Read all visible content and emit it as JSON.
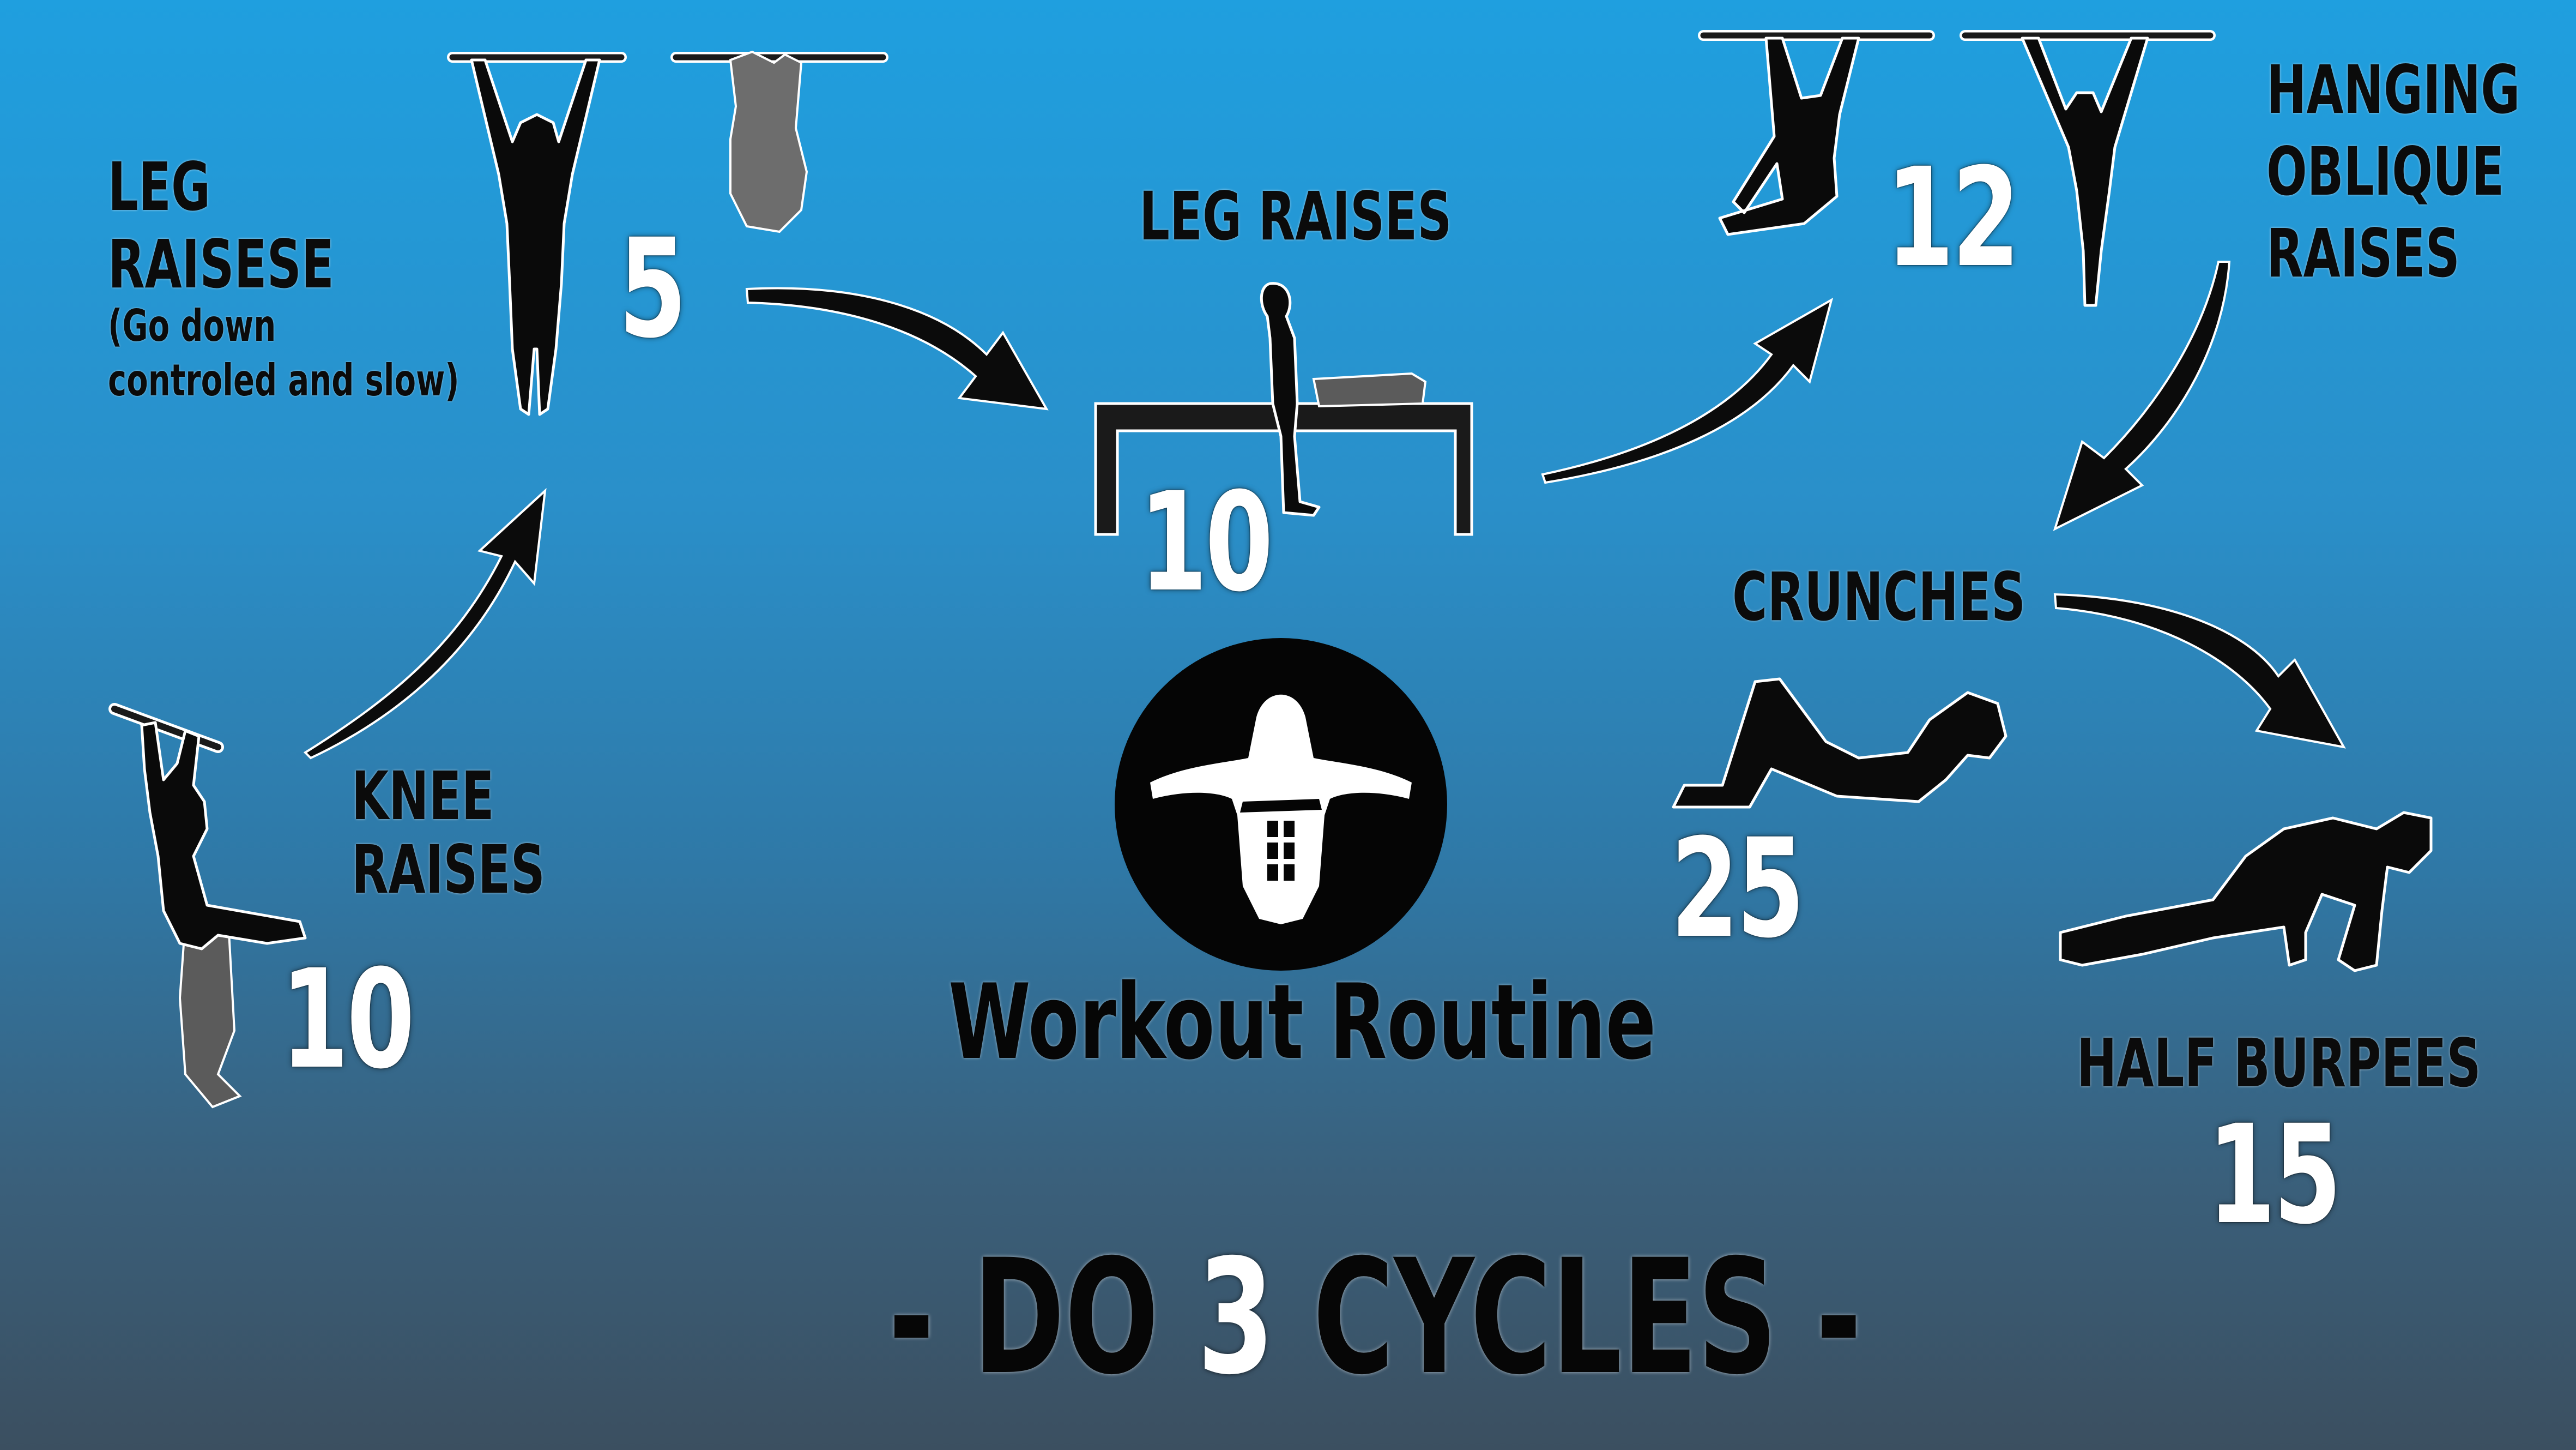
{
  "exercises": [
    {
      "id": "knee-raises",
      "label_line1": "KNEE",
      "label_line2": "RAISES",
      "reps": "10"
    },
    {
      "id": "leg-raises-hanging",
      "label_line1": "LEG",
      "label_line2": "RAISESE",
      "note_line1": "(Go down",
      "note_line2": "controled and slow)",
      "reps": "5"
    },
    {
      "id": "leg-raises-bench",
      "label": "LEG RAISES",
      "reps": "10"
    },
    {
      "id": "hanging-oblique-raises",
      "label_line1": "HANGING",
      "label_line2": "OBLIQUE",
      "label_line3": "RAISES",
      "reps": "12"
    },
    {
      "id": "crunches",
      "label": "CRUNCHES",
      "reps": "25"
    },
    {
      "id": "half-burpees",
      "label": "HALF BURPEES",
      "reps": "15"
    }
  ],
  "center": {
    "title": "Workout Routine"
  },
  "footer": {
    "prefix": "- DO",
    "cycle_count": "3",
    "suffix": "CYCLES -"
  },
  "colors": {
    "background_top": "#1f9fdf",
    "background_bottom": "#3b4f60",
    "text_dark": "#0b0b0b",
    "number_white": "#ffffff"
  }
}
